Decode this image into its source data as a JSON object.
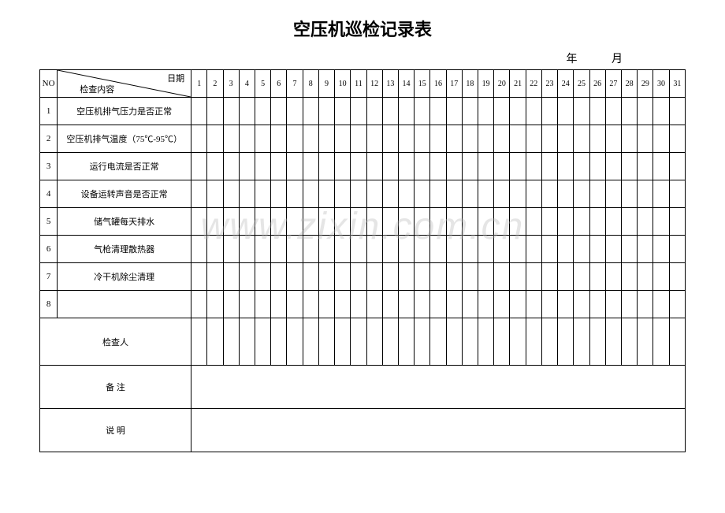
{
  "title": "空压机巡检记录表",
  "date_labels": {
    "year": "年",
    "month": "月"
  },
  "header": {
    "no_label": "NO",
    "date_label": "日期",
    "content_label": "检查内容",
    "days": [
      "1",
      "2",
      "3",
      "4",
      "5",
      "6",
      "7",
      "8",
      "9",
      "10",
      "11",
      "12",
      "13",
      "14",
      "15",
      "16",
      "17",
      "18",
      "19",
      "20",
      "21",
      "22",
      "23",
      "24",
      "25",
      "26",
      "27",
      "28",
      "29",
      "30",
      "31"
    ]
  },
  "rows": [
    {
      "no": "1",
      "desc": "空压机排气压力是否正常"
    },
    {
      "no": "2",
      "desc": "空压机排气温度（75℃-95℃）"
    },
    {
      "no": "3",
      "desc": "运行电流是否正常"
    },
    {
      "no": "4",
      "desc": "设备运转声音是否正常"
    },
    {
      "no": "5",
      "desc": "储气罐每天排水"
    },
    {
      "no": "6",
      "desc": "气枪清理散热器"
    },
    {
      "no": "7",
      "desc": "冷干机除尘清理"
    },
    {
      "no": "8",
      "desc": ""
    }
  ],
  "footer": {
    "inspector": "检查人",
    "remarks": "备 注",
    "explanation": "说  明"
  },
  "watermark": "www.zixin.com.cn",
  "colors": {
    "border": "#000000",
    "background": "#ffffff",
    "text": "#000000",
    "watermark": "rgba(180,180,180,0.35)"
  }
}
